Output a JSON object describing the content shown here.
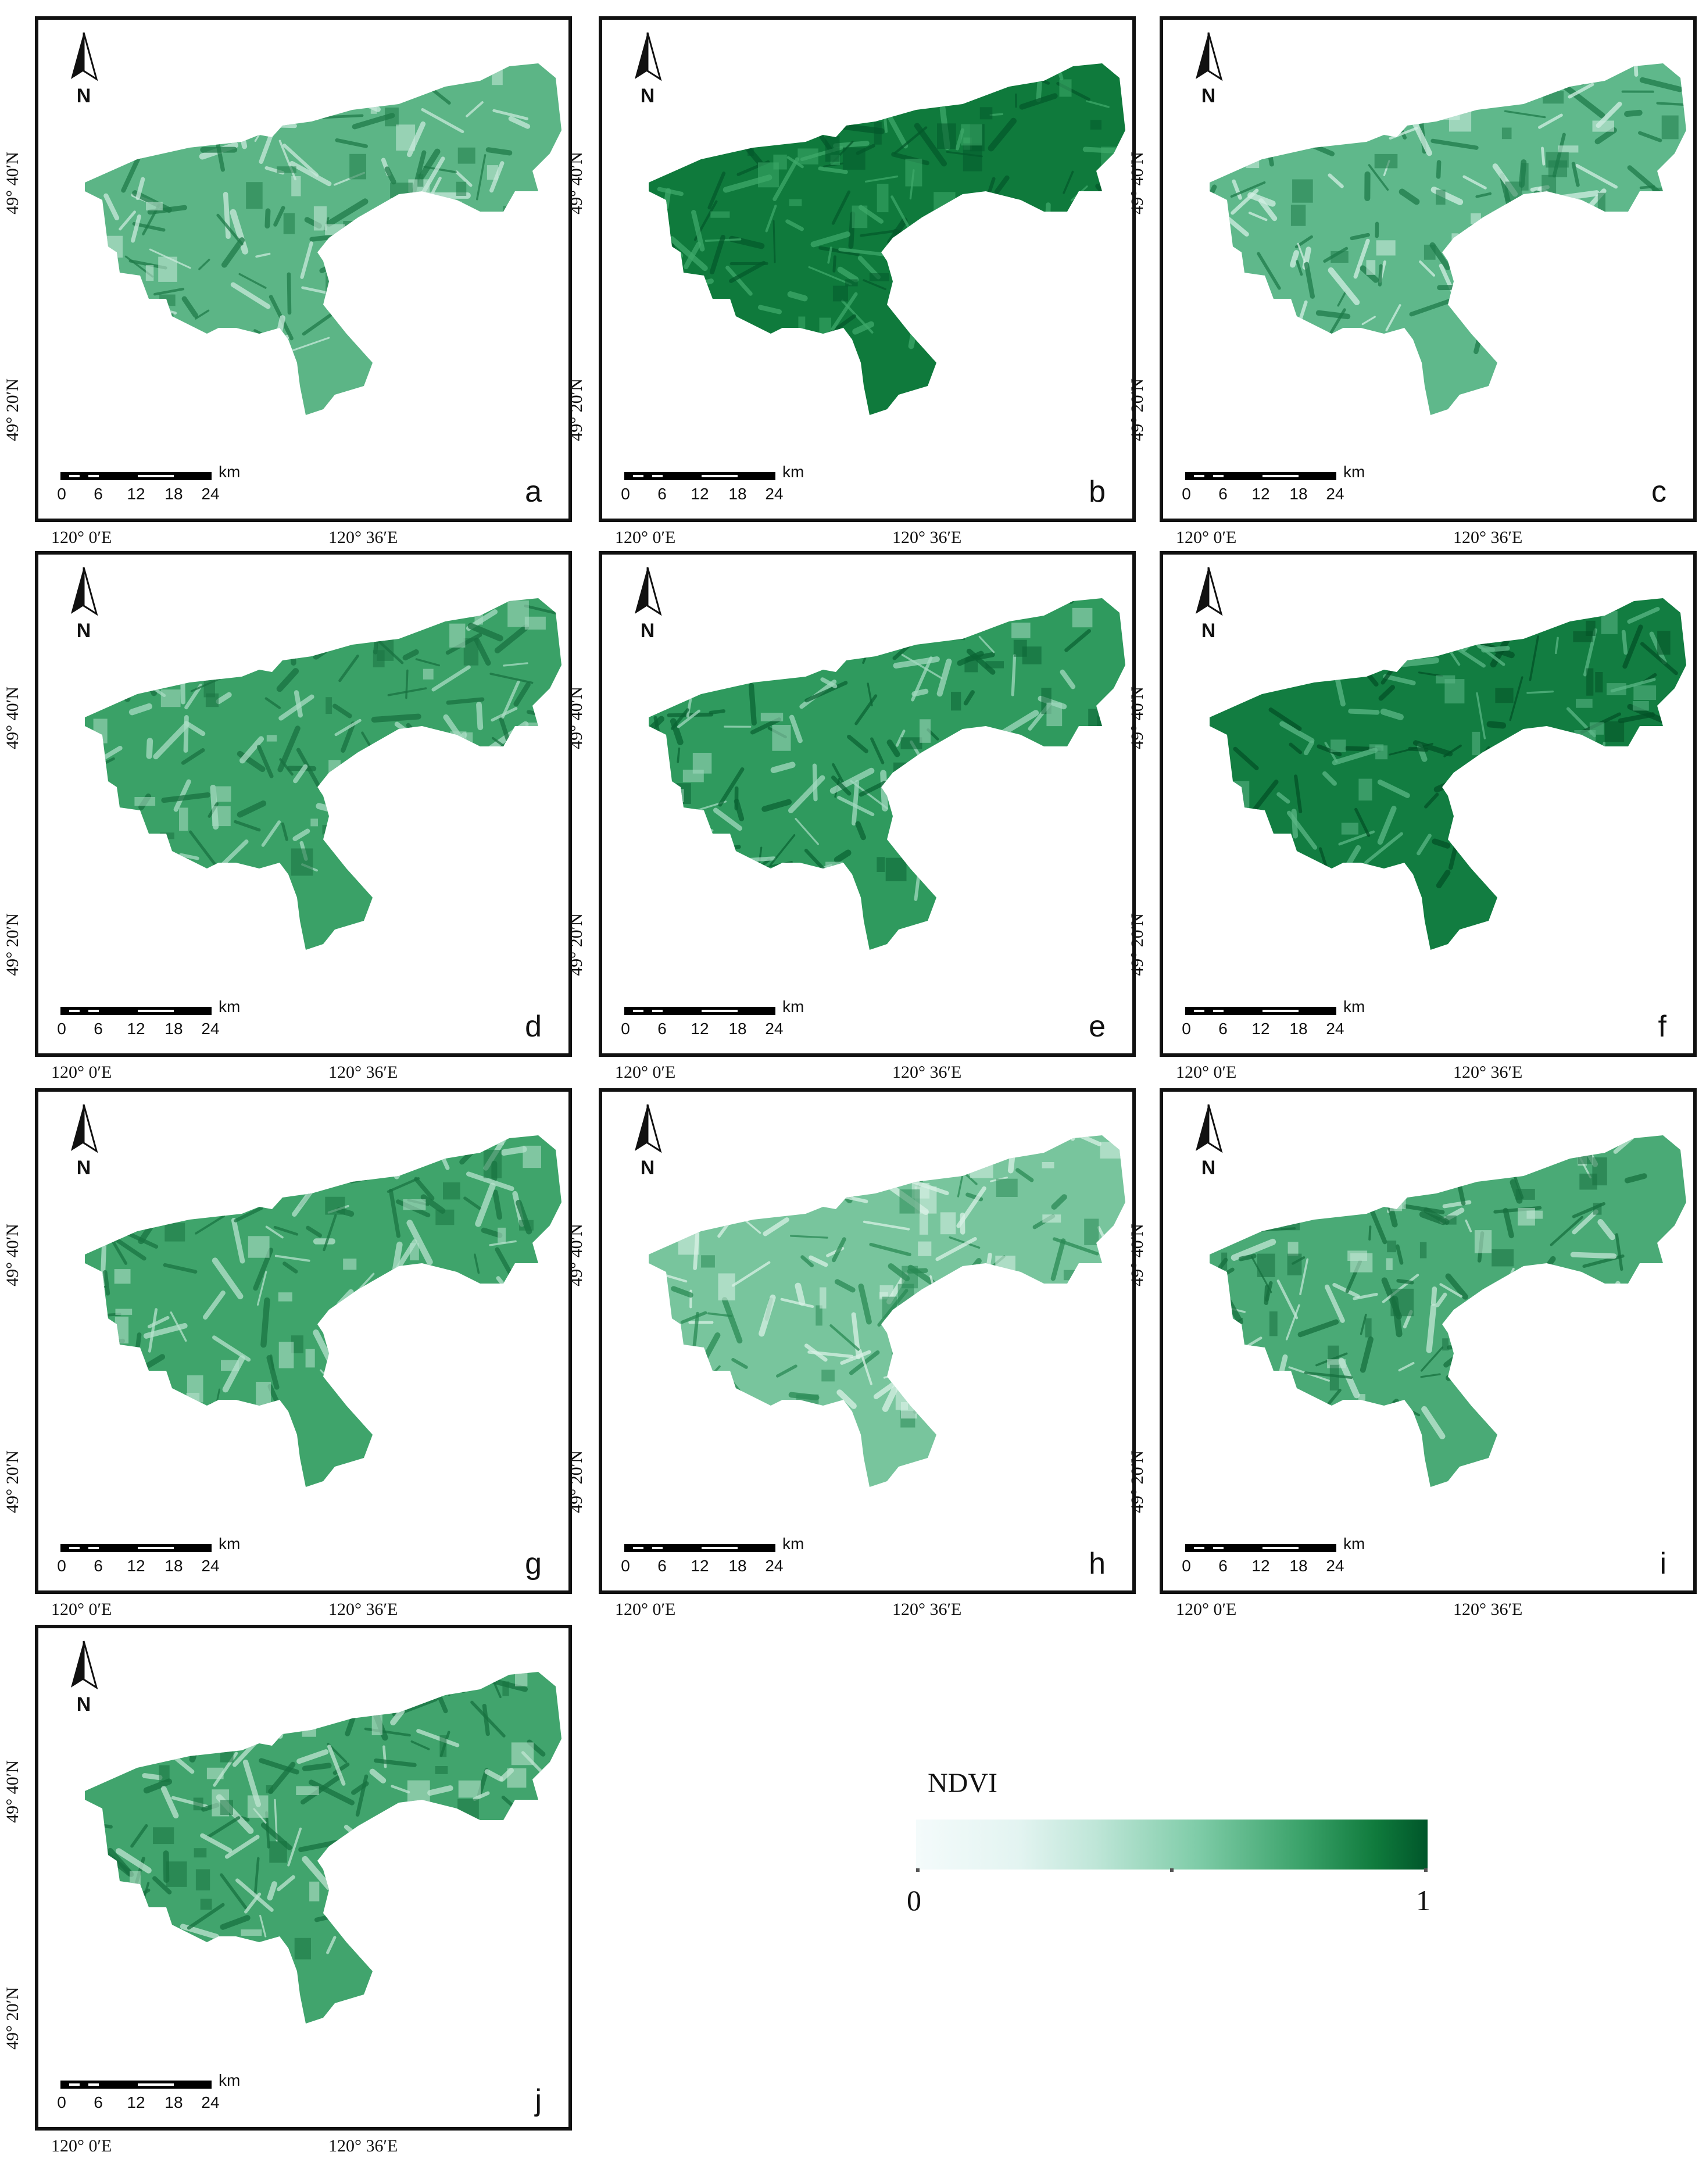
{
  "panels": [
    {
      "id": "a",
      "letter": "a",
      "fill": "#5cb586",
      "light": "#c8eadb",
      "dark": "#1f7b49"
    },
    {
      "id": "b",
      "letter": "b",
      "fill": "#0f7a3c",
      "light": "#3ea96a",
      "dark": "#045a2b"
    },
    {
      "id": "c",
      "letter": "c",
      "fill": "#5fb88b",
      "light": "#d2efe3",
      "dark": "#1e7b4a"
    },
    {
      "id": "d",
      "letter": "d",
      "fill": "#3aa167",
      "light": "#a9dcc3",
      "dark": "#197241"
    },
    {
      "id": "e",
      "letter": "e",
      "fill": "#2f9a5e",
      "light": "#a2d9bf",
      "dark": "#0b6434"
    },
    {
      "id": "f",
      "letter": "f",
      "fill": "#127d41",
      "light": "#5bb786",
      "dark": "#035227"
    },
    {
      "id": "g",
      "letter": "g",
      "fill": "#3fa46b",
      "light": "#b6e2cd",
      "dark": "#1a7442"
    },
    {
      "id": "h",
      "letter": "h",
      "fill": "#78c59d",
      "light": "#d9f1e6",
      "dark": "#2a8a55"
    },
    {
      "id": "i",
      "letter": "i",
      "fill": "#4aaa76",
      "light": "#c3e7d6",
      "dark": "#17703f"
    },
    {
      "id": "j",
      "letter": "j",
      "fill": "#41a46d",
      "light": "#bfe5d2",
      "dark": "#177240"
    }
  ],
  "north_arrow": {
    "letter": "N",
    "icon": "north-arrow-icon"
  },
  "scale_bar": {
    "unit": "km",
    "ticks": [
      "0",
      "6",
      "12",
      "18",
      "24"
    ]
  },
  "axes": {
    "lat_labels": [
      "49° 40′N",
      "49° 20′N"
    ],
    "lon_labels": [
      "120° 0′E",
      "120° 36′E"
    ]
  },
  "legend": {
    "title": "NDVI",
    "min_label": "0",
    "max_label": "1",
    "colors": [
      "#f4fbfb",
      "#bfe6d8",
      "#7fcca8",
      "#3ca36b",
      "#00562a"
    ]
  }
}
